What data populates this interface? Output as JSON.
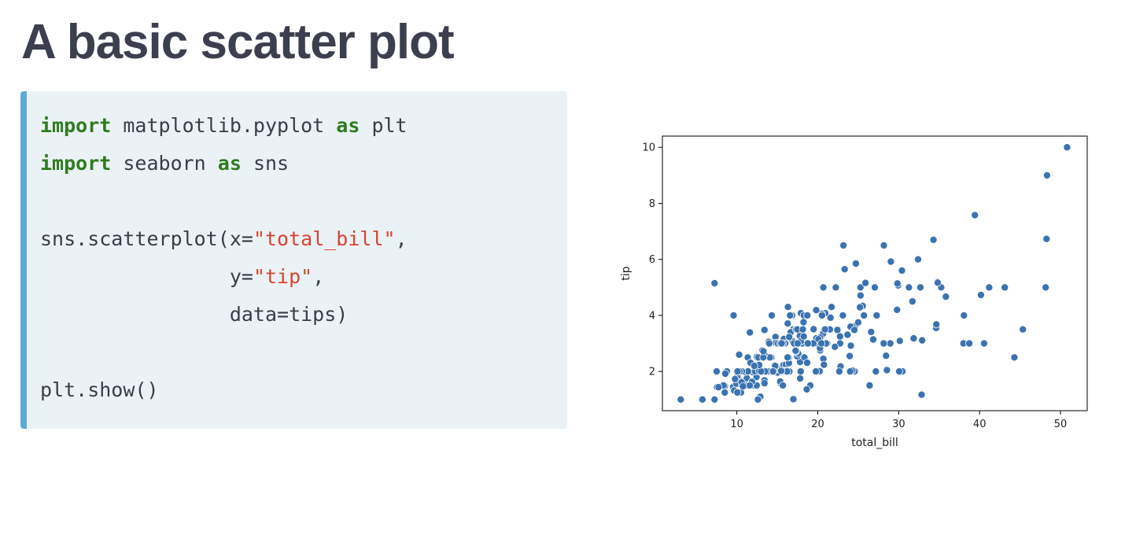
{
  "slide": {
    "title": "A basic scatter plot"
  },
  "code": {
    "lines": [
      [
        {
          "t": "import",
          "c": "kw"
        },
        {
          "t": " matplotlib.pyplot "
        },
        {
          "t": "as",
          "c": "kw"
        },
        {
          "t": " plt"
        }
      ],
      [
        {
          "t": "import",
          "c": "kw"
        },
        {
          "t": " seaborn "
        },
        {
          "t": "as",
          "c": "kw"
        },
        {
          "t": " sns"
        }
      ],
      [],
      [
        {
          "t": "sns.scatterplot(x="
        },
        {
          "t": "\"total_bill\"",
          "c": "str"
        },
        {
          "t": ","
        }
      ],
      [
        {
          "t": "                y="
        },
        {
          "t": "\"tip\"",
          "c": "str"
        },
        {
          "t": ","
        }
      ],
      [
        {
          "t": "                data=tips)"
        }
      ],
      [],
      [
        {
          "t": "plt.show()"
        }
      ]
    ],
    "colors": {
      "keyword": "#2e7c1f",
      "string": "#d9432f",
      "text": "#3a3d47",
      "background": "#ebf2f6",
      "accent_border": "#5aabd3"
    }
  },
  "chart_data": {
    "type": "scatter",
    "title": "",
    "xlabel": "total_bill",
    "ylabel": "tip",
    "xlim": [
      0.8,
      53.3
    ],
    "ylim": [
      0.6,
      10.4
    ],
    "xticks": [
      10,
      20,
      30,
      40,
      50
    ],
    "yticks": [
      2,
      4,
      6,
      8,
      10
    ],
    "grid": false,
    "point_color": "#3b73b1",
    "x": [
      16.99,
      10.34,
      21.01,
      23.68,
      24.59,
      25.29,
      8.77,
      26.88,
      15.04,
      14.78,
      10.27,
      35.26,
      15.42,
      18.43,
      14.83,
      21.58,
      10.33,
      16.29,
      16.97,
      20.65,
      17.92,
      20.29,
      15.77,
      39.42,
      19.82,
      17.81,
      13.37,
      12.69,
      21.7,
      19.65,
      9.55,
      18.35,
      15.06,
      20.69,
      17.78,
      24.06,
      16.31,
      16.93,
      18.69,
      31.27,
      16.04,
      17.46,
      13.94,
      9.68,
      30.4,
      18.29,
      22.23,
      32.4,
      28.55,
      18.04,
      12.54,
      10.29,
      34.81,
      9.94,
      25.56,
      19.49,
      38.01,
      26.41,
      11.24,
      48.27,
      20.29,
      13.81,
      11.02,
      18.29,
      17.59,
      20.08,
      16.45,
      3.07,
      20.23,
      15.01,
      12.02,
      17.07,
      26.86,
      25.28,
      14.73,
      10.51,
      17.92,
      27.2,
      22.76,
      17.29,
      19.44,
      16.66,
      10.07,
      32.68,
      15.98,
      34.83,
      13.03,
      18.28,
      24.71,
      21.16,
      28.97,
      22.49,
      5.75,
      16.32,
      22.75,
      40.17,
      27.28,
      12.03,
      21.01,
      12.46,
      11.35,
      15.38,
      44.3,
      22.42,
      20.92,
      15.36,
      20.49,
      25.21,
      18.24,
      14.31,
      14.0,
      7.25,
      38.07,
      23.95,
      25.71,
      17.31,
      29.93,
      10.65,
      12.43,
      24.08,
      11.69,
      13.42,
      14.26,
      15.95,
      12.48,
      29.8,
      8.52,
      14.52,
      11.38,
      22.82,
      19.08,
      20.27,
      11.17,
      12.26,
      18.26,
      8.51,
      10.33,
      14.15,
      16.0,
      13.16,
      17.47,
      34.3,
      41.19,
      27.05,
      16.43,
      8.35,
      18.64,
      11.87,
      9.78,
      7.51,
      14.07,
      13.13,
      17.26,
      24.55,
      19.77,
      29.85,
      48.17,
      25.0,
      13.39,
      16.49,
      21.5,
      12.66,
      16.21,
      13.81,
      17.51,
      24.52,
      20.76,
      31.71,
      10.59,
      10.63,
      50.81,
      15.81,
      7.25,
      31.85,
      16.82,
      32.9,
      17.89,
      14.48,
      9.6,
      34.63,
      34.65,
      23.33,
      45.35,
      23.17,
      40.55,
      20.69,
      20.9,
      30.46,
      18.15,
      23.1,
      15.69,
      19.81,
      28.44,
      15.48,
      16.58,
      7.56,
      10.34,
      43.11,
      13.0,
      13.51,
      18.71,
      12.74,
      13.0,
      16.4,
      20.53,
      16.47,
      26.59,
      38.73,
      24.27,
      12.76,
      30.06,
      25.89,
      48.33,
      13.27,
      28.17,
      12.9,
      28.15,
      11.59,
      7.74,
      30.14,
      12.16,
      13.42,
      8.58,
      15.98,
      13.42,
      16.27,
      10.09,
      20.45,
      13.28,
      22.12,
      24.01,
      15.69,
      11.61,
      10.77,
      15.53,
      10.07,
      12.6,
      32.83,
      35.83,
      29.03,
      27.18,
      22.67,
      17.82,
      18.78
    ],
    "y": [
      1.01,
      1.66,
      3.5,
      3.31,
      3.61,
      4.71,
      2.0,
      3.12,
      1.96,
      3.23,
      1.71,
      5.0,
      1.57,
      3.0,
      3.02,
      3.92,
      1.67,
      3.71,
      3.5,
      3.35,
      4.08,
      2.75,
      2.23,
      7.58,
      3.18,
      2.34,
      2.0,
      2.0,
      4.3,
      3.0,
      1.45,
      2.5,
      3.0,
      2.45,
      3.27,
      3.6,
      2.0,
      3.07,
      2.31,
      5.0,
      2.24,
      2.54,
      3.06,
      1.32,
      5.6,
      3.0,
      5.0,
      6.0,
      2.05,
      3.0,
      2.5,
      2.6,
      5.2,
      1.56,
      4.34,
      3.51,
      3.0,
      1.5,
      1.76,
      6.73,
      3.21,
      2.0,
      1.98,
      3.76,
      2.64,
      3.15,
      2.47,
      1.0,
      2.01,
      2.09,
      1.97,
      3.0,
      3.14,
      5.0,
      2.2,
      1.25,
      3.08,
      4.0,
      3.0,
      2.71,
      3.0,
      3.4,
      1.83,
      5.0,
      2.03,
      5.17,
      2.0,
      4.0,
      5.85,
      3.0,
      3.0,
      3.5,
      1.0,
      4.3,
      3.25,
      4.73,
      4.0,
      1.5,
      3.0,
      1.5,
      2.5,
      3.0,
      2.5,
      3.48,
      4.08,
      1.64,
      4.06,
      4.29,
      3.76,
      4.0,
      3.0,
      1.0,
      4.0,
      2.55,
      4.0,
      3.5,
      5.07,
      1.5,
      1.8,
      2.92,
      2.31,
      1.68,
      2.5,
      2.0,
      2.52,
      4.2,
      1.48,
      2.0,
      2.0,
      2.18,
      1.5,
      2.83,
      1.5,
      2.0,
      3.25,
      1.25,
      2.0,
      2.0,
      2.0,
      2.75,
      3.5,
      6.7,
      5.0,
      5.0,
      2.3,
      1.5,
      1.36,
      1.63,
      1.73,
      2.0,
      2.5,
      2.0,
      2.74,
      2.0,
      2.0,
      5.14,
      5.0,
      3.75,
      2.61,
      2.0,
      3.5,
      2.5,
      2.0,
      2.0,
      3.0,
      3.48,
      2.24,
      4.5,
      1.61,
      2.0,
      10.0,
      3.16,
      5.15,
      3.18,
      4.0,
      3.11,
      2.0,
      2.0,
      4.0,
      3.55,
      3.68,
      5.65,
      3.5,
      6.5,
      3.0,
      5.0,
      3.5,
      2.0,
      3.5,
      4.0,
      1.5,
      4.19,
      2.56,
      2.02,
      4.0,
      1.44,
      2.0,
      5.0,
      2.0,
      2.0,
      4.0,
      2.01,
      2.0,
      2.5,
      4.0,
      3.23,
      3.41,
      3.0,
      2.03,
      2.23,
      2.0,
      5.16,
      9.0,
      2.5,
      6.5,
      1.1,
      3.0,
      1.5,
      1.44,
      3.09,
      2.2,
      3.48,
      1.92,
      3.0,
      1.58,
      2.5,
      2.0,
      3.0,
      2.72,
      2.88,
      2.0,
      3.0,
      3.39,
      1.47,
      3.0,
      1.25,
      1.0,
      1.17,
      4.67,
      5.92,
      2.0,
      2.0,
      1.75,
      3.0
    ]
  }
}
